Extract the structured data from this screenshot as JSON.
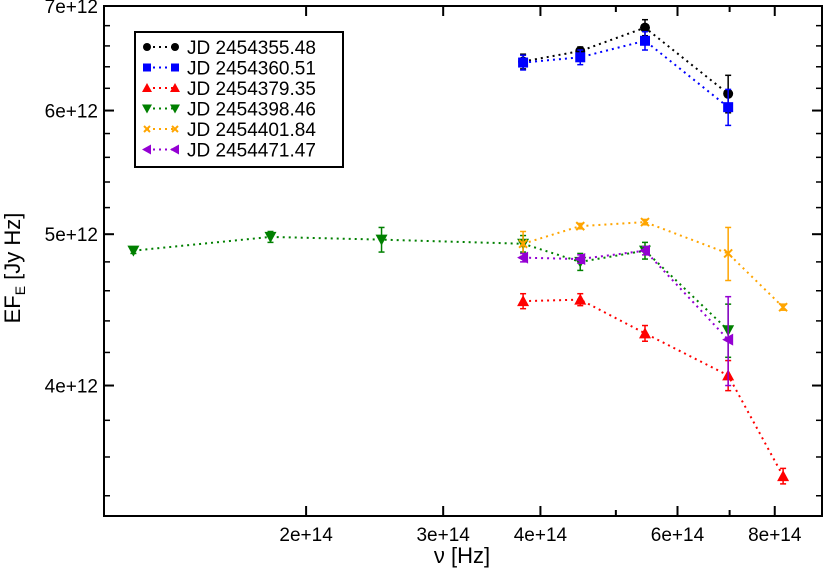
{
  "chart_data": {
    "type": "line",
    "xlabel": "ν [Hz]",
    "ylabel_main": "EF",
    "ylabel_sub": "E",
    "ylabel_units": " [Jy Hz]",
    "xscale": "log",
    "yscale": "log",
    "xlim": [
      110000000000000.0,
      920000000000000.0
    ],
    "ylim": [
      3300000000000.0,
      7000000000000.0
    ],
    "x_ticks": [
      {
        "value": 200000000000000.0,
        "label": "2e+14"
      },
      {
        "value": 300000000000000.0,
        "label": "3e+14"
      },
      {
        "value": 400000000000000.0,
        "label": "4e+14"
      },
      {
        "value": 600000000000000.0,
        "label": "6e+14"
      },
      {
        "value": 800000000000000.0,
        "label": "8e+14"
      }
    ],
    "x_minor": [
      500000000000000.0,
      700000000000000.0
    ],
    "y_ticks": [
      {
        "value": 4000000000000.0,
        "label": "4e+12"
      },
      {
        "value": 5000000000000.0,
        "label": "5e+12"
      },
      {
        "value": 6000000000000.0,
        "label": "6e+12"
      },
      {
        "value": 7000000000000.0,
        "label": "7e+12"
      }
    ],
    "legend_position": "top-left",
    "series": [
      {
        "name": "JD 2454355.48",
        "color": "#000000",
        "marker": "circle",
        "x": [
          380000000000000.0,
          450000000000000.0,
          545000000000000.0,
          697000000000000.0
        ],
        "y": [
          6450000000000.0,
          6550000000000.0,
          6780000000000.0,
          6150000000000.0
        ],
        "err": [
          70000000000.0,
          40000000000.0,
          80000000000.0,
          170000000000.0
        ]
      },
      {
        "name": "JD 2454360.51",
        "color": "#0000ff",
        "marker": "square",
        "x": [
          380000000000000.0,
          450000000000000.0,
          545000000000000.0,
          697000000000000.0
        ],
        "y": [
          6440000000000.0,
          6490000000000.0,
          6650000000000.0,
          6030000000000.0
        ],
        "err": [
          70000000000.0,
          70000000000.0,
          90000000000.0,
          160000000000.0
        ]
      },
      {
        "name": "JD 2454379.35",
        "color": "#ff0000",
        "marker": "triangle-up",
        "x": [
          380000000000000.0,
          450000000000000.0,
          545000000000000.0,
          697000000000000.0,
          820000000000000.0
        ],
        "y": [
          4530000000000.0,
          4540000000000.0,
          4320000000000.0,
          4060000000000.0,
          3500000000000.0
        ],
        "err": [
          50000000000.0,
          40000000000.0,
          50000000000.0,
          90000000000.0,
          40000000000.0
        ]
      },
      {
        "name": "JD 2454398.46",
        "color": "#008000",
        "marker": "triangle-down",
        "x": [
          120000000000000.0,
          180000000000000.0,
          250000000000000.0,
          380000000000000.0,
          450000000000000.0,
          545000000000000.0,
          697000000000000.0
        ],
        "y": [
          4880000000000.0,
          4980000000000.0,
          4960000000000.0,
          4930000000000.0,
          4800000000000.0,
          4880000000000.0,
          4340000000000.0
        ],
        "err": [
          20000000000.0,
          40000000000.0,
          90000000000.0,
          60000000000.0,
          60000000000.0,
          60000000000.0,
          170000000000.0
        ]
      },
      {
        "name": "JD 2454401.84",
        "color": "#ffa500",
        "marker": "cross",
        "x": [
          380000000000000.0,
          450000000000000.0,
          545000000000000.0,
          697000000000000.0,
          820000000000000.0
        ],
        "y": [
          4930000000000.0,
          5060000000000.0,
          5090000000000.0,
          4860000000000.0,
          4490000000000.0
        ],
        "err": [
          90000000000.0,
          20000000000.0,
          20000000000.0,
          190000000000.0,
          20000000000.0
        ]
      },
      {
        "name": "JD 2454471.47",
        "color": "#9400d3",
        "marker": "triangle-left",
        "x": [
          380000000000000.0,
          450000000000000.0,
          545000000000000.0,
          697000000000000.0
        ],
        "y": [
          4830000000000.0,
          4820000000000.0,
          4880000000000.0,
          4280000000000.0
        ],
        "err": [
          30000000000.0,
          30000000000.0,
          30000000000.0,
          280000000000.0
        ]
      }
    ]
  }
}
